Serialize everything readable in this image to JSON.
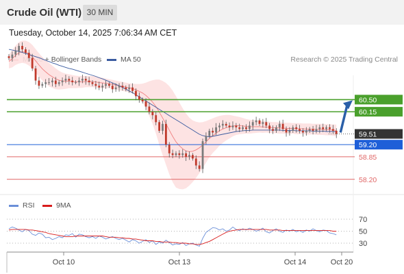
{
  "header": {
    "title": "Crude Oil (WTI)",
    "interval": "30 MIN",
    "timestamp": "Tuesday, October 14, 2025 7:06:34 AM CET"
  },
  "legend": {
    "ma20_label": "MA 20 + Bollinger Bands",
    "ma50_label": "MA 50",
    "credit": "Research © 2025 Trading Central",
    "rsi_label": "RSI",
    "rsi_ma_label": "9MA"
  },
  "colors": {
    "ma20": "#f08080",
    "ma50": "#3a5ba0",
    "band_fill": "#fde0e0",
    "target": "#4aa02c",
    "current": "#333333",
    "pivot": "#1e5fd8",
    "support": "#e06666",
    "arrow": "#2a5fa8",
    "rsi": "#6a8fd8",
    "rsi_ma": "#d81b1b",
    "candle_up": "#7a7a7a",
    "candle_down": "#c0392b"
  },
  "chart_data": [
    {
      "type": "candlestick",
      "title": "Crude Oil (WTI)",
      "x_ticks": [
        "Oct 10",
        "Oct 13",
        "Oct 14",
        "Oct 20"
      ],
      "ylim": [
        57.8,
        61.2
      ],
      "price_levels": [
        {
          "label": "60.50",
          "value": 60.5,
          "kind": "target"
        },
        {
          "label": "60.15",
          "value": 60.15,
          "kind": "target"
        },
        {
          "label": "59.51",
          "value": 59.51,
          "kind": "current"
        },
        {
          "label": "59.20",
          "value": 59.2,
          "kind": "pivot"
        },
        {
          "label": "58.85",
          "value": 58.85,
          "kind": "support"
        },
        {
          "label": "58.20",
          "value": 58.2,
          "kind": "support"
        }
      ],
      "close": [
        61.7,
        61.8,
        61.9,
        62.05,
        61.95,
        61.85,
        61.7,
        61.4,
        61.05,
        60.9,
        60.95,
        61.0,
        61.0,
        61.05,
        60.95,
        61.0,
        61.05,
        61.1,
        61.05,
        61.0,
        61.0,
        61.05,
        61.1,
        61.05,
        61.0,
        60.95,
        60.9,
        60.85,
        60.9,
        60.95,
        60.9,
        60.8,
        60.85,
        60.9,
        60.85,
        60.8,
        60.85,
        60.75,
        60.6,
        60.5,
        60.45,
        60.3,
        60.15,
        60.05,
        59.85,
        59.6,
        59.8,
        59.2,
        58.95,
        58.9,
        58.95,
        58.9,
        58.95,
        58.85,
        58.9,
        58.8,
        58.6,
        58.5,
        59.3,
        59.45,
        59.6,
        59.55,
        59.7,
        59.75,
        59.8,
        59.75,
        59.7,
        59.75,
        59.7,
        59.65,
        59.7,
        59.65,
        59.75,
        59.85,
        59.9,
        59.8,
        59.85,
        59.75,
        59.65,
        59.6,
        59.7,
        59.8,
        59.65,
        59.55,
        59.6,
        59.7,
        59.65,
        59.6,
        59.55,
        59.6,
        59.65,
        59.6,
        59.65,
        59.7,
        59.65,
        59.7,
        59.65,
        59.6,
        59.51
      ],
      "ma20": [
        61.6,
        61.68,
        61.78,
        61.85,
        61.88,
        61.87,
        61.82,
        61.74,
        61.62,
        61.5,
        61.39,
        61.3,
        61.22,
        61.16,
        61.1,
        61.06,
        61.04,
        61.03,
        61.03,
        61.02,
        61.01,
        61.01,
        61.01,
        61.02,
        61.02,
        61.02,
        61.01,
        60.99,
        60.98,
        60.97,
        60.96,
        60.94,
        60.92,
        60.9,
        60.88,
        60.86,
        60.84,
        60.82,
        60.78,
        60.74,
        60.69,
        60.62,
        60.53,
        60.43,
        60.3,
        60.14,
        59.97,
        59.8,
        59.62,
        59.44,
        59.28,
        59.17,
        59.08,
        59.02,
        59.0,
        59.01,
        59.05,
        59.11,
        59.19,
        59.28,
        59.38,
        59.46,
        59.53,
        59.6,
        59.65,
        59.69,
        59.72,
        59.74,
        59.75,
        59.75,
        59.74,
        59.73,
        59.72,
        59.72,
        59.72,
        59.72,
        59.71,
        59.71,
        59.7,
        59.69,
        59.69,
        59.68,
        59.68,
        59.67,
        59.67,
        59.67,
        59.66,
        59.66,
        59.66,
        59.65,
        59.65,
        59.65,
        59.64,
        59.64,
        59.64,
        59.63,
        59.63,
        59.62,
        59.61
      ],
      "bb_upper": [
        61.8,
        61.93,
        62.06,
        62.16,
        62.2,
        62.2,
        62.16,
        62.08,
        61.96,
        61.84,
        61.73,
        61.64,
        61.56,
        61.48,
        61.4,
        61.33,
        61.28,
        61.25,
        61.23,
        61.21,
        61.19,
        61.18,
        61.18,
        61.18,
        61.18,
        61.18,
        61.17,
        61.15,
        61.13,
        61.11,
        61.09,
        61.07,
        61.05,
        61.03,
        61.01,
        60.99,
        60.97,
        60.96,
        60.95,
        60.95,
        60.96,
        60.99,
        61.03,
        61.06,
        61.08,
        61.08,
        61.04,
        60.98,
        60.89,
        60.76,
        60.6,
        60.42,
        60.25,
        60.1,
        59.98,
        59.9,
        59.86,
        59.84,
        59.85,
        59.88,
        59.92,
        59.96,
        60.0,
        60.03,
        60.05,
        60.06,
        60.06,
        60.04,
        60.02,
        60.0,
        59.97,
        59.94,
        59.92,
        59.91,
        59.9,
        59.89,
        59.88,
        59.87,
        59.86,
        59.85,
        59.85,
        59.84,
        59.84,
        59.83,
        59.83,
        59.82,
        59.82,
        59.82,
        59.81,
        59.81,
        59.81,
        59.8,
        59.8,
        59.8,
        59.8,
        59.79,
        59.79,
        59.78,
        59.78
      ],
      "bb_lower": [
        61.4,
        61.43,
        61.5,
        61.54,
        61.56,
        61.54,
        61.48,
        61.4,
        61.28,
        61.16,
        61.05,
        60.96,
        60.88,
        60.84,
        60.8,
        60.79,
        60.8,
        60.81,
        60.83,
        60.83,
        60.83,
        60.84,
        60.84,
        60.86,
        60.86,
        60.86,
        60.85,
        60.83,
        60.83,
        60.83,
        60.83,
        60.81,
        60.79,
        60.77,
        60.75,
        60.73,
        60.71,
        60.68,
        60.61,
        60.53,
        60.42,
        60.25,
        60.03,
        59.8,
        59.52,
        59.2,
        58.9,
        58.62,
        58.35,
        58.12,
        57.96,
        57.92,
        57.91,
        57.94,
        58.02,
        58.12,
        58.24,
        58.38,
        58.53,
        58.68,
        58.84,
        58.96,
        59.06,
        59.17,
        59.25,
        59.32,
        59.38,
        59.44,
        59.48,
        59.5,
        59.51,
        59.52,
        59.52,
        59.53,
        59.54,
        59.55,
        59.54,
        59.55,
        59.54,
        59.53,
        59.53,
        59.52,
        59.52,
        59.51,
        59.51,
        59.52,
        59.5,
        59.5,
        59.51,
        59.49,
        59.49,
        59.5,
        59.48,
        59.48,
        59.48,
        59.47,
        59.47,
        59.46,
        59.44
      ],
      "ma50": [
        61.95,
        61.93,
        61.91,
        61.89,
        61.86,
        61.83,
        61.8,
        61.77,
        61.74,
        61.71,
        61.67,
        61.63,
        61.6,
        61.56,
        61.53,
        61.49,
        61.46,
        61.43,
        61.4,
        61.38,
        61.35,
        61.32,
        61.29,
        61.26,
        61.23,
        61.2,
        61.17,
        61.13,
        61.1,
        61.06,
        61.02,
        60.98,
        60.94,
        60.9,
        60.85,
        60.8,
        60.75,
        60.7,
        60.64,
        60.58,
        60.52,
        60.46,
        60.4,
        60.34,
        60.28,
        60.22,
        60.16,
        60.1,
        60.04,
        59.98,
        59.92,
        59.86,
        59.8,
        59.74,
        59.68,
        59.62,
        59.56,
        59.5,
        59.46,
        59.44,
        59.43,
        59.44,
        59.46,
        59.48,
        59.5,
        59.52,
        59.54,
        59.56,
        59.58,
        59.59,
        59.6,
        59.61,
        59.61,
        59.62,
        59.62,
        59.62,
        59.62,
        59.62,
        59.62,
        59.62,
        59.62,
        59.62,
        59.61,
        59.61,
        59.61,
        59.61,
        59.6,
        59.6,
        59.6,
        59.6,
        59.6,
        59.59,
        59.59,
        59.59,
        59.59,
        59.58,
        59.58,
        59.58,
        59.57
      ]
    },
    {
      "type": "line",
      "title": "RSI",
      "y_ticks": [
        70,
        50,
        30
      ],
      "ylim": [
        20,
        80
      ],
      "series": [
        {
          "name": "RSI",
          "values": [
            54,
            57,
            55,
            52,
            49,
            53,
            51,
            45,
            43,
            47,
            45,
            39,
            40,
            36,
            38,
            41,
            39,
            44,
            43,
            46,
            40,
            45,
            44,
            41,
            39,
            41,
            38,
            42,
            40,
            37,
            39,
            41,
            38,
            36,
            38,
            35,
            32,
            36,
            34,
            30,
            33,
            36,
            31,
            34,
            28,
            32,
            30,
            35,
            31,
            27,
            29,
            28,
            31,
            26,
            29,
            30,
            27,
            25,
            38,
            48,
            52,
            56,
            55,
            52,
            54,
            50,
            52,
            57,
            53,
            51,
            54,
            52,
            55,
            53,
            50,
            52,
            55,
            49,
            47,
            51,
            54,
            50,
            48,
            52,
            50,
            53,
            49,
            51,
            48,
            52,
            50,
            54,
            51,
            49,
            52,
            51,
            47,
            46,
            44
          ]
        },
        {
          "name": "9MA",
          "values": [
            52,
            53,
            53,
            53,
            53,
            53,
            52,
            52,
            51,
            50,
            49,
            48,
            46,
            45,
            44,
            43,
            42,
            41,
            41,
            41,
            42,
            42,
            42,
            42,
            42,
            42,
            42,
            42,
            42,
            41,
            40,
            40,
            40,
            39,
            39,
            38,
            38,
            37,
            37,
            36,
            35,
            34,
            34,
            34,
            33,
            33,
            32,
            32,
            32,
            31,
            31,
            30,
            30,
            30,
            29,
            29,
            28,
            28,
            29,
            31,
            33,
            36,
            39,
            42,
            45,
            48,
            50,
            51,
            52,
            53,
            53,
            53,
            53,
            53,
            53,
            53,
            53,
            53,
            52,
            52,
            52,
            52,
            51,
            51,
            51,
            51,
            51,
            51,
            51,
            51,
            51,
            51,
            51,
            51,
            51,
            51,
            51,
            50,
            50
          ]
        }
      ]
    }
  ]
}
